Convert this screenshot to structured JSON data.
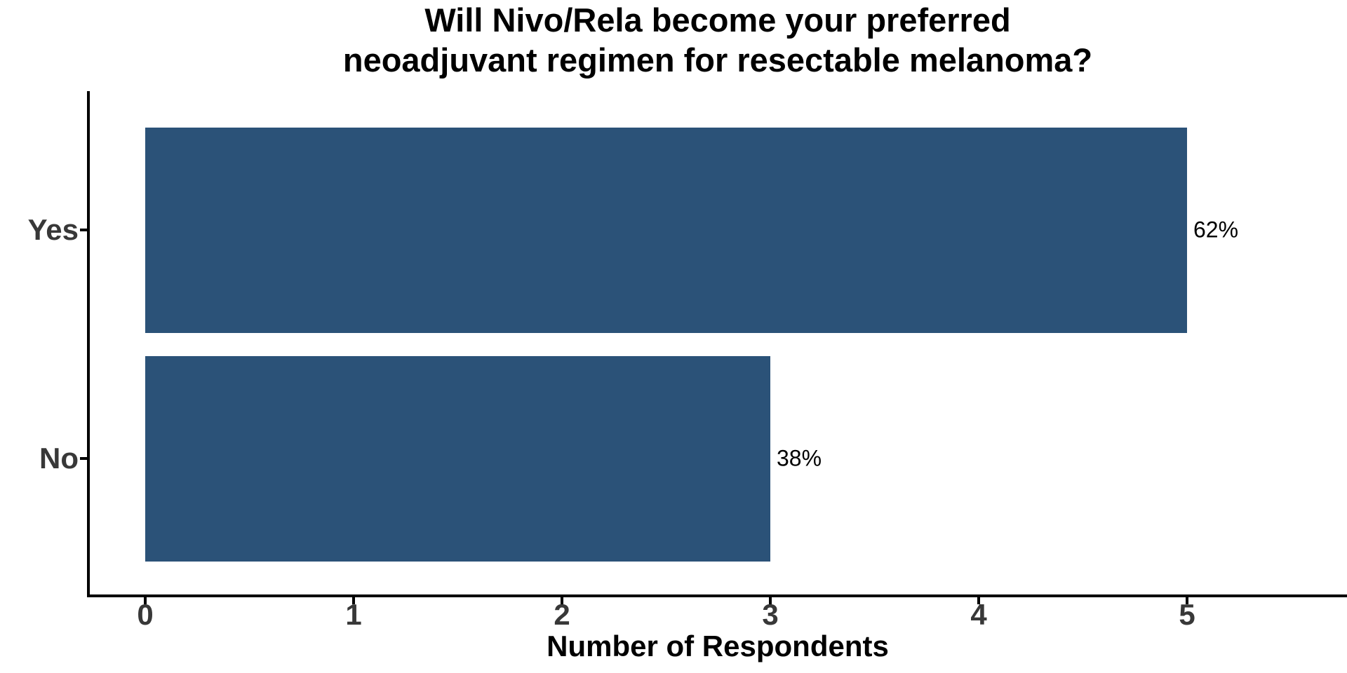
{
  "chart_data": {
    "type": "bar",
    "orientation": "horizontal",
    "title": "Will Nivo/Rela become your preferred neoadjuvant regimen for resectable melanoma?",
    "title_lines": [
      "Will Nivo/Rela become your preferred",
      "neoadjuvant regimen for resectable melanoma?"
    ],
    "categories": [
      "Yes",
      "No"
    ],
    "values": [
      5,
      3
    ],
    "bar_labels": [
      "62%",
      "38%"
    ],
    "xlabel": "Number of Respondents",
    "ylabel": "",
    "xticks": [
      0,
      1,
      2,
      3,
      4,
      5
    ],
    "xlim": [
      0,
      5.75
    ],
    "grid": false,
    "legend": false,
    "colors": {
      "bar": "#2B5278",
      "axis_line": "#000000",
      "tick_label": "#383838",
      "category_label": "#383838",
      "title": "#000000",
      "value_label": "#000000",
      "background": "#FFFFFF"
    }
  }
}
